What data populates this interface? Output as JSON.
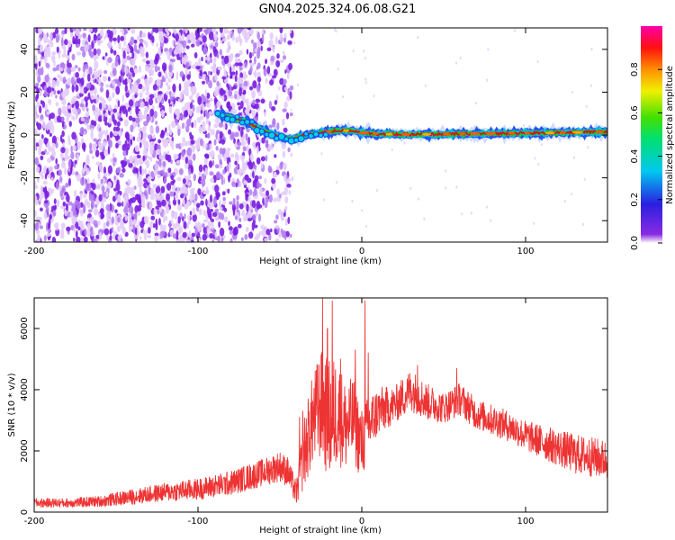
{
  "title": "GN04.2025.324.06.08.G21",
  "colors": {
    "background": "#ffffff",
    "snr_line": "#ee3333",
    "scatter": "#7a1fe0",
    "ridge_core": "#dd1111",
    "ridge_mid": "#11cc22",
    "ridge_edge": "#1144ee"
  },
  "chart_data": [
    {
      "type": "heatmap",
      "xlabel": "Height of straight line (km)",
      "ylabel": "Frequency (Hz)",
      "xlim": [
        -200,
        150
      ],
      "ylim": [
        -50,
        50
      ],
      "xticks": [
        {
          "v": -200,
          "label": "-200"
        },
        {
          "v": -100,
          "label": "-100"
        },
        {
          "v": 0,
          "label": "0"
        },
        {
          "v": 100,
          "label": "100"
        }
      ],
      "yticks": [
        {
          "v": -40,
          "label": "-40"
        },
        {
          "v": -20,
          "label": "-20"
        },
        {
          "v": 0,
          "label": "0"
        },
        {
          "v": 20,
          "label": "20"
        },
        {
          "v": 40,
          "label": "40"
        }
      ],
      "colorbar": {
        "label": "Normalized spectral amplitude",
        "range": [
          0,
          1
        ],
        "ticks": [
          {
            "v": 0.0,
            "label": "0.0"
          },
          {
            "v": 0.2,
            "label": "0.2"
          },
          {
            "v": 0.4,
            "label": "0.4"
          },
          {
            "v": 0.6,
            "label": "0.6"
          },
          {
            "v": 0.8,
            "label": "0.8"
          }
        ]
      },
      "noise_region_x": [
        -200,
        -44
      ],
      "ridge": {
        "x": [
          -88,
          -80,
          -70,
          -60,
          -50,
          -42,
          -35,
          -25,
          -15,
          -5,
          0,
          10,
          30,
          60,
          90,
          120,
          150
        ],
        "y": [
          10,
          8,
          6,
          2,
          -1,
          -2,
          0,
          1,
          2,
          2,
          1,
          0.5,
          0.2,
          0.5,
          0.8,
          1,
          1.5
        ]
      },
      "grid": false
    },
    {
      "type": "line",
      "xlabel": "Height of straight line (km)",
      "ylabel": "SNR (10 * v/v)",
      "xlim": [
        -200,
        150
      ],
      "ylim": [
        0,
        7000
      ],
      "xticks": [
        {
          "v": -200,
          "label": "-200"
        },
        {
          "v": -100,
          "label": "-100"
        },
        {
          "v": 0,
          "label": "0"
        },
        {
          "v": 100,
          "label": "100"
        }
      ],
      "yticks": [
        {
          "v": 0,
          "label": "0"
        },
        {
          "v": 2000,
          "label": "2000"
        },
        {
          "v": 4000,
          "label": "4000"
        },
        {
          "v": 6000,
          "label": "6000"
        }
      ],
      "envelope": {
        "x": [
          -200,
          -180,
          -160,
          -140,
          -120,
          -100,
          -80,
          -60,
          -50,
          -45,
          -40,
          -35,
          -30,
          -25,
          -20,
          -15,
          -10,
          -5,
          0,
          5,
          10,
          20,
          30,
          40,
          50,
          60,
          70,
          80,
          90,
          100,
          110,
          120,
          130,
          140,
          150
        ],
        "mean": [
          300,
          300,
          350,
          500,
          650,
          750,
          950,
          1300,
          1500,
          1300,
          600,
          2000,
          3000,
          3500,
          3000,
          3300,
          2800,
          3000,
          2200,
          2900,
          3300,
          3500,
          4000,
          3600,
          3400,
          3700,
          3200,
          3000,
          2800,
          2500,
          2300,
          2100,
          1900,
          1800,
          1700
        ],
        "spread": [
          150,
          150,
          180,
          250,
          300,
          350,
          400,
          450,
          500,
          500,
          400,
          1200,
          1500,
          1800,
          2000,
          1800,
          1500,
          1400,
          1200,
          1000,
          800,
          600,
          700,
          600,
          500,
          550,
          500,
          500,
          500,
          500,
          550,
          600,
          650,
          650,
          650
        ]
      },
      "peaks": [
        {
          "x": -38,
          "y": 3100
        },
        {
          "x": -36,
          "y": 3300
        },
        {
          "x": -27,
          "y": 4800
        },
        {
          "x": -24,
          "y": 7000
        },
        {
          "x": -21,
          "y": 6000
        },
        {
          "x": -18,
          "y": 6900
        },
        {
          "x": -13,
          "y": 5000
        },
        {
          "x": -4,
          "y": 5300
        },
        {
          "x": 2,
          "y": 6900
        },
        {
          "x": 4,
          "y": 5200
        },
        {
          "x": 34,
          "y": 4800
        },
        {
          "x": 58,
          "y": 4700
        }
      ],
      "grid": false
    }
  ]
}
